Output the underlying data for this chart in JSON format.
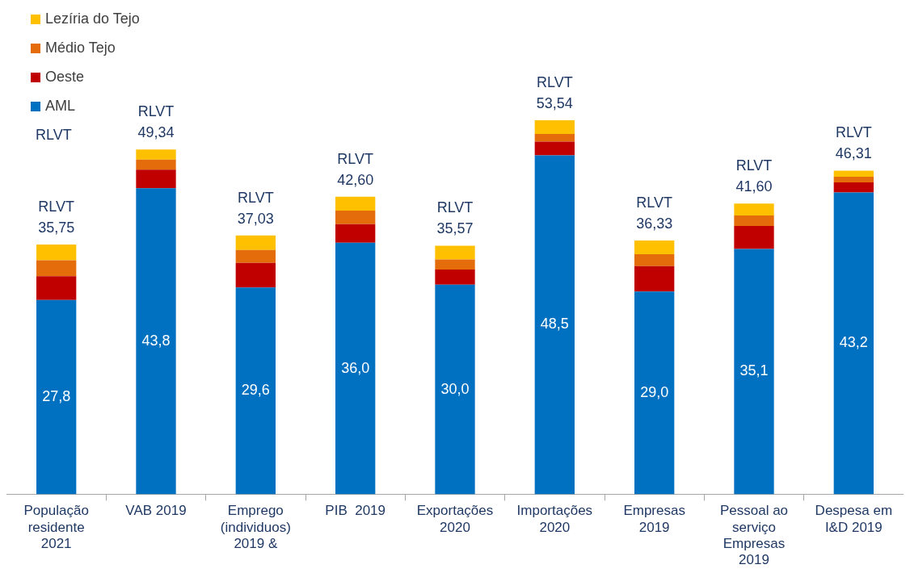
{
  "chart_data": {
    "type": "bar",
    "stacked": true,
    "legend": "top left",
    "grid": false,
    "categories": [
      "População residente 2021",
      "VAB 2019",
      "Emprego (individuos) 2019 &",
      "PIB  2019",
      "Exportações 2020",
      "Importações 2020",
      "Empresas 2019",
      "Pessoal ao serviço Empresas 2019",
      "Despesa em I&D 2019"
    ],
    "series": [
      {
        "name": "AML",
        "color": "#0070c0",
        "values": [
          27.8,
          43.8,
          29.6,
          36.0,
          30.0,
          48.5,
          29.0,
          35.1,
          43.2
        ],
        "value_labels": [
          "27,8",
          "43,8",
          "29,6",
          "36,0",
          "30,0",
          "48,5",
          "29,0",
          "35,1",
          "43,2"
        ]
      },
      {
        "name": "Oeste",
        "color": "#c00000",
        "values": [
          3.4,
          2.65,
          3.5,
          2.65,
          2.17,
          1.98,
          3.65,
          3.3,
          1.45
        ]
      },
      {
        "name": "Médio Tejo",
        "color": "#e46c0a",
        "values": [
          2.3,
          1.45,
          1.85,
          1.93,
          1.44,
          1.1,
          1.7,
          1.5,
          0.8
        ]
      },
      {
        "name": "Lezíria do Tejo",
        "color": "#ffc000",
        "values": [
          2.25,
          1.44,
          2.08,
          2.02,
          1.96,
          1.96,
          1.98,
          1.7,
          0.86
        ]
      }
    ],
    "totals": [
      "RLVT 35,75",
      "RLVT 49,34",
      "RLVT 37,03",
      "RLVT 42,60",
      "RLVT 35,57",
      "RLVT 53,54",
      "RLVT 36,33",
      "RLVT 41,60",
      "RLVT 46,31"
    ],
    "annotations": [
      "RLVT"
    ]
  }
}
